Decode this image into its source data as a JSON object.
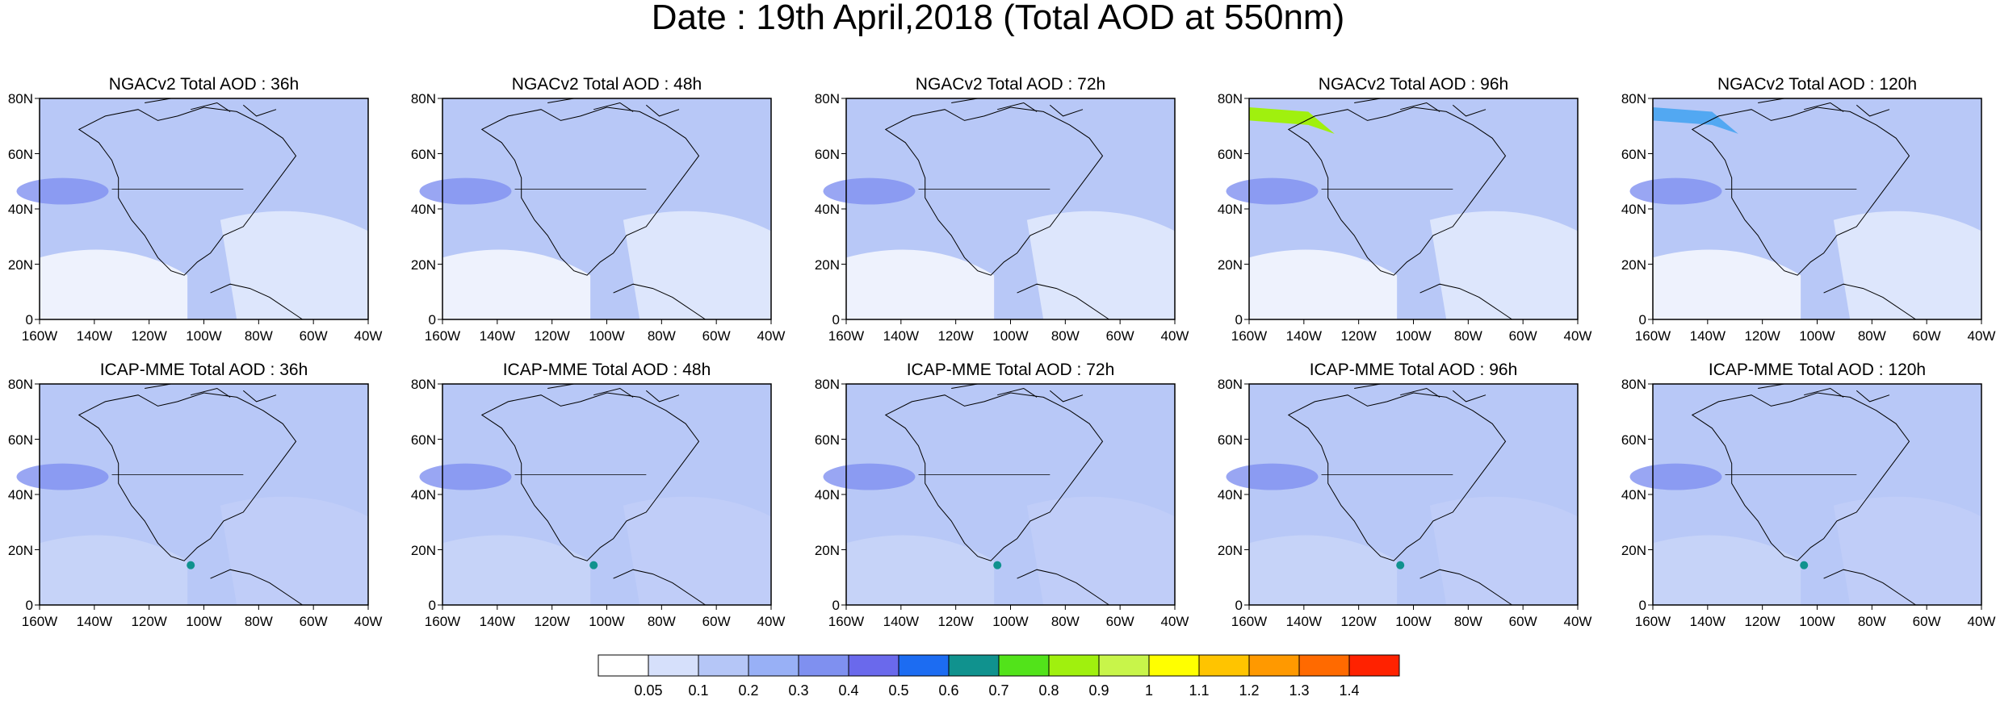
{
  "title": "Date : 19th April,2018 (Total AOD at 550nm)",
  "axes": {
    "lat_labels": [
      "80N",
      "60N",
      "40N",
      "20N",
      "0"
    ],
    "lon_labels": [
      "160W",
      "140W",
      "120W",
      "100W",
      "80W",
      "60W",
      "40W"
    ]
  },
  "panels": [
    {
      "title": "NGACv2 Total AOD : 36h"
    },
    {
      "title": "NGACv2 Total AOD : 48h"
    },
    {
      "title": "NGACv2 Total AOD : 72h"
    },
    {
      "title": "NGACv2 Total AOD : 96h"
    },
    {
      "title": "NGACv2 Total AOD : 120h"
    },
    {
      "title": "ICAP-MME Total AOD : 36h"
    },
    {
      "title": "ICAP-MME Total AOD : 48h"
    },
    {
      "title": "ICAP-MME Total AOD : 72h"
    },
    {
      "title": "ICAP-MME Total AOD : 96h"
    },
    {
      "title": "ICAP-MME Total AOD : 120h"
    }
  ],
  "colorbar": {
    "labels": [
      "0.05",
      "0.1",
      "0.2",
      "0.3",
      "0.4",
      "0.5",
      "0.6",
      "0.7",
      "0.8",
      "0.9",
      "1",
      "1.1",
      "1.2",
      "1.3",
      "1.4"
    ],
    "colors": [
      "#ffffff",
      "#d6e0fb",
      "#b5c6f7",
      "#98b0f6",
      "#7f90f0",
      "#6a69ec",
      "#1c6cf2",
      "#10928e",
      "#52e31a",
      "#a0f00e",
      "#c8f54a",
      "#ffff00",
      "#ffc400",
      "#ff9900",
      "#ff6a00",
      "#ff2200"
    ]
  }
}
